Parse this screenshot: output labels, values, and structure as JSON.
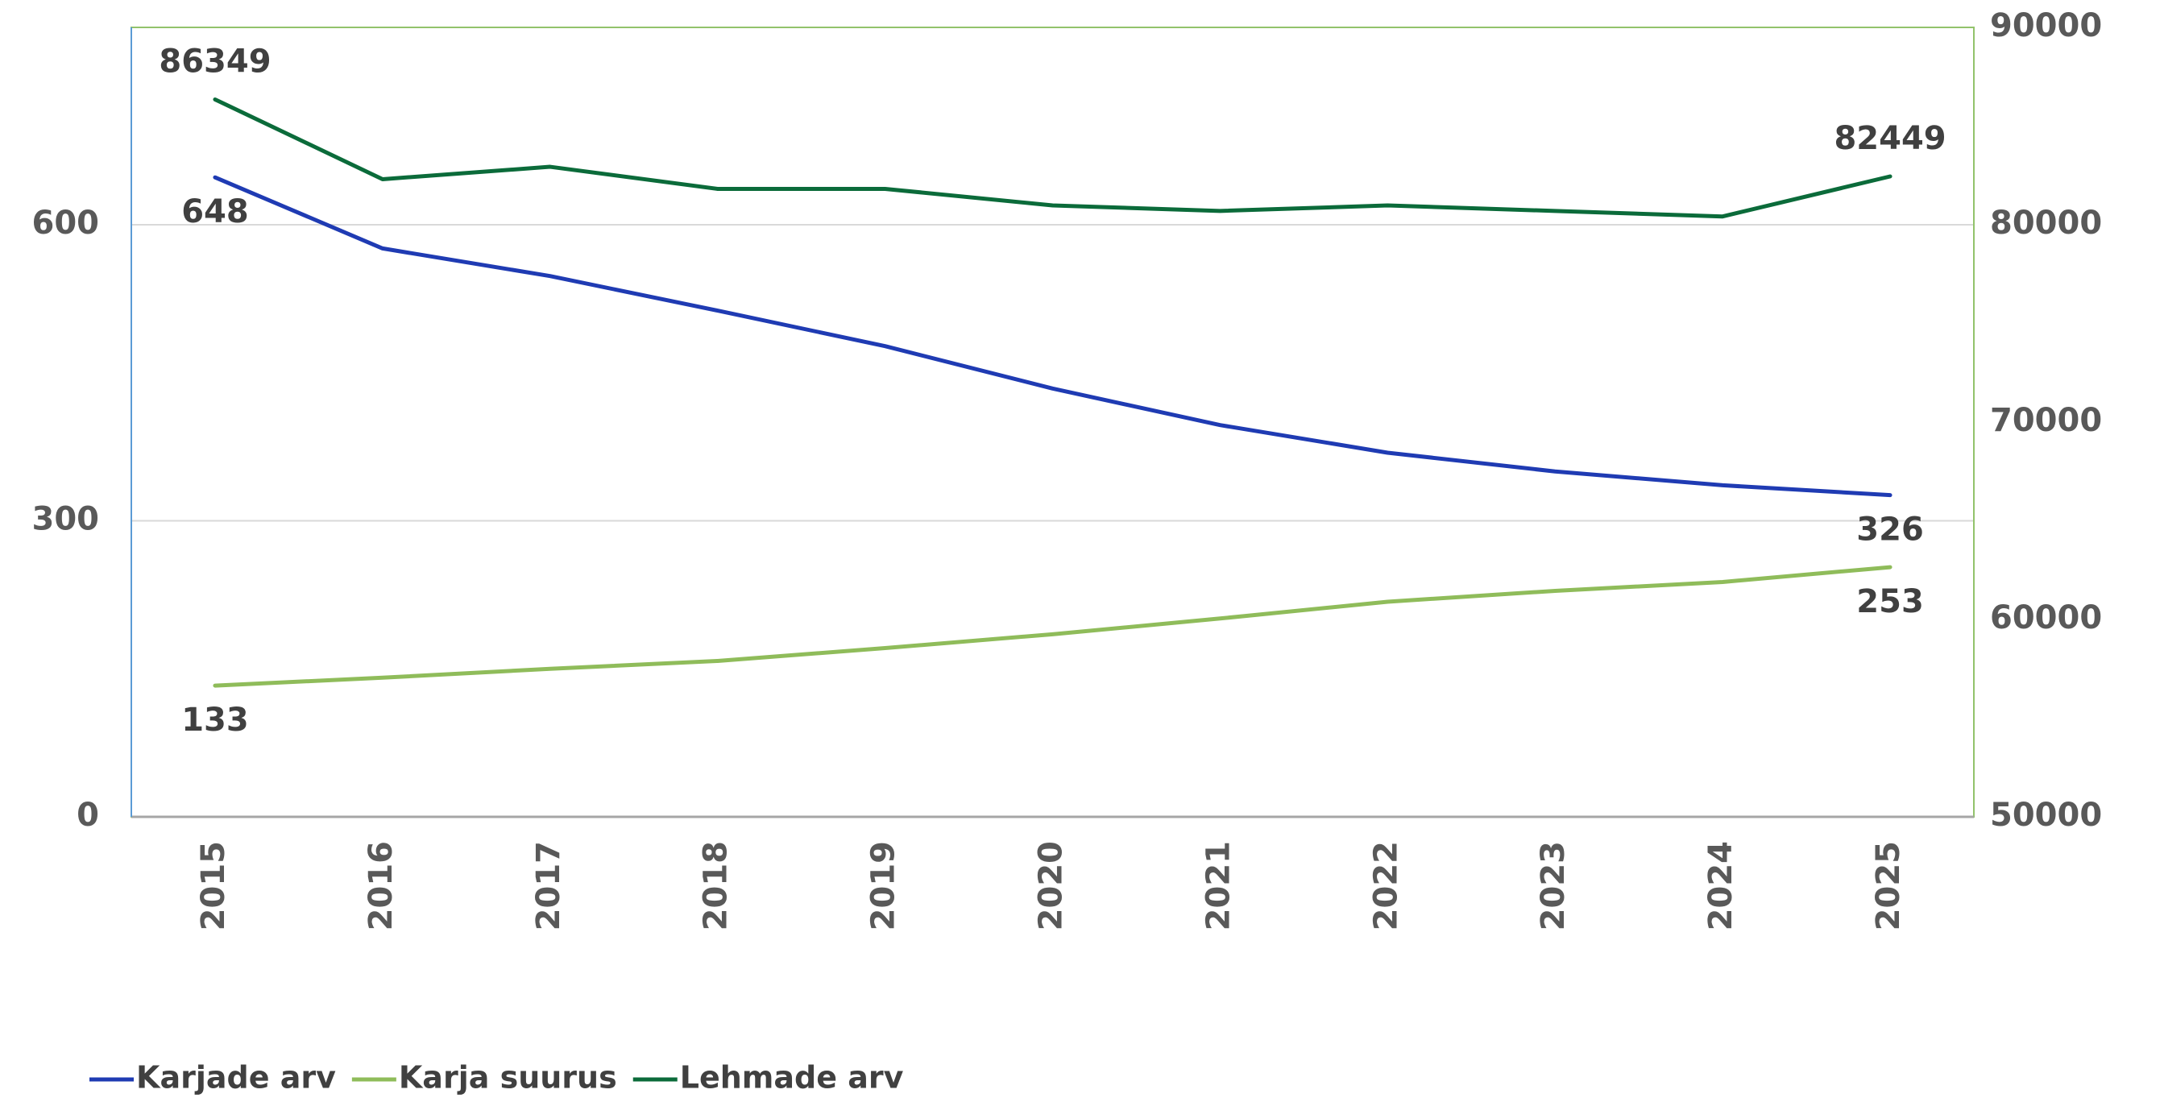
{
  "chart_data": {
    "type": "line",
    "categories": [
      "2015",
      "2016",
      "2017",
      "2018",
      "2019",
      "2020",
      "2021",
      "2022",
      "2023",
      "2024",
      "2025"
    ],
    "ylim": [
      0,
      800
    ],
    "yticks": [
      0,
      300,
      600
    ],
    "y2lim": [
      50000,
      90000
    ],
    "y2ticks": [
      50000,
      60000,
      70000,
      80000,
      90000
    ],
    "grid": true,
    "legend": "bottom-left",
    "series": [
      {
        "name": "Karjade arv",
        "color": "#1f3bb3",
        "values": [
          648,
          576,
          548,
          513,
          477,
          434,
          397,
          369,
          350,
          336,
          326
        ],
        "label_indices": [
          0,
          10
        ],
        "label_position": "below"
      },
      {
        "name": "Karja suurus",
        "color": "#8fbc5a",
        "values": [
          133,
          141,
          150,
          158,
          171,
          185,
          201,
          218,
          229,
          238,
          253
        ],
        "label_indices": [
          0,
          10
        ],
        "label_position": "below"
      },
      {
        "name": "Lehmade arv",
        "color": "#0b6b3a",
        "axis": "y2",
        "values": [
          86349,
          82308,
          82937,
          81818,
          81818,
          80979,
          80699,
          80979,
          80699,
          80420,
          82449
        ],
        "label_indices": [
          0,
          10
        ],
        "label_position": "above"
      }
    ]
  }
}
